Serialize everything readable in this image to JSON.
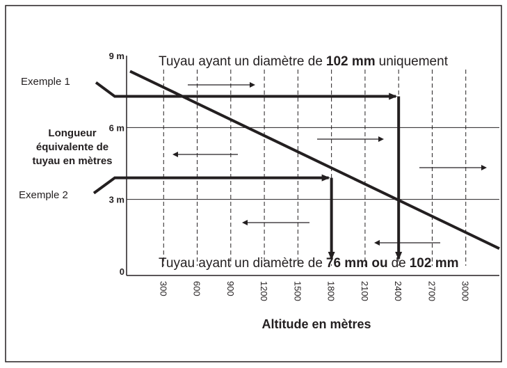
{
  "chart_data": {
    "type": "line",
    "x_label": "Altitude en mètres",
    "y_label_lines": [
      "Longueur",
      "équivalente de",
      "tuyau en mètres"
    ],
    "xlim": [
      0,
      3300
    ],
    "xticks": [
      300,
      600,
      900,
      1200,
      1500,
      1800,
      2100,
      2400,
      2700,
      3000
    ],
    "ylim": [
      0,
      9
    ],
    "yticks": [
      {
        "value": 0,
        "label": "0"
      },
      {
        "value": 3,
        "label": "3 m"
      },
      {
        "value": 6,
        "label": "6 m"
      },
      {
        "value": 9,
        "label": "9 m"
      }
    ],
    "grid": true,
    "series": [
      {
        "color": "#231f20",
        "x": [
          0,
          3300
        ],
        "values": [
          8.35,
          0.95
        ]
      }
    ],
    "examples": [
      {
        "label": "Exemple 1",
        "y": 7.3,
        "x": 2400
      },
      {
        "label": "Exemple 2",
        "y": 3.9,
        "x": 1800
      }
    ],
    "top_region": [
      {
        "text": "Tuyau ayant un diamètre de",
        "bold": false
      },
      {
        "text": "102 mm",
        "bold": true
      },
      {
        "text": "uniquement",
        "bold": false
      }
    ],
    "bottom_region": [
      {
        "text": "Tuyau ayant un diamètre de",
        "bold": false
      },
      {
        "text": "76 mm ou",
        "bold": true
      },
      {
        "text": "de",
        "bold": false
      },
      {
        "text": "102 mm",
        "bold": true
      }
    ]
  }
}
